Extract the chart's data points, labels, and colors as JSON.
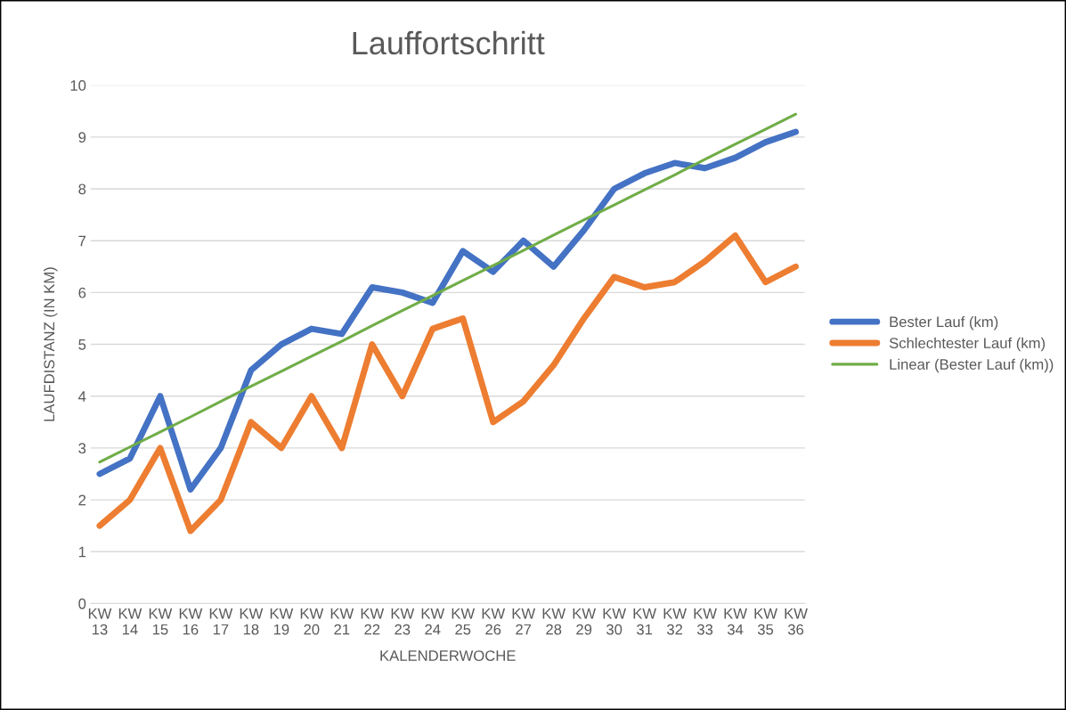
{
  "chart_data": {
    "type": "line",
    "title": "Lauffortschritt",
    "xlabel": "KALENDERWOCHE",
    "ylabel": "LAUFDISTANZ (IN KM)",
    "categories": [
      "KW\n13",
      "KW\n14",
      "KW\n15",
      "KW\n16",
      "KW\n17",
      "KW\n18",
      "KW\n19",
      "KW\n20",
      "KW\n21",
      "KW\n22",
      "KW\n23",
      "KW\n24",
      "KW\n25",
      "KW\n26",
      "KW\n27",
      "KW\n28",
      "KW\n29",
      "KW\n30",
      "KW\n31",
      "KW\n32",
      "KW\n33",
      "KW\n34",
      "KW\n35",
      "KW\n36"
    ],
    "series": [
      {
        "name": "Bester Lauf (km)",
        "color": "#4472c4",
        "values": [
          2.5,
          2.8,
          4.0,
          2.2,
          3.0,
          4.5,
          5.0,
          5.3,
          5.2,
          6.1,
          6.0,
          5.8,
          6.8,
          6.4,
          7.0,
          6.5,
          7.2,
          8.0,
          8.3,
          8.5,
          8.4,
          8.6,
          8.9,
          9.1
        ]
      },
      {
        "name": "Schlechtester Lauf (km)",
        "color": "#ed7d31",
        "values": [
          1.5,
          2.0,
          3.0,
          1.4,
          2.0,
          3.5,
          3.0,
          4.0,
          3.0,
          5.0,
          4.0,
          5.3,
          5.5,
          3.5,
          3.9,
          4.6,
          5.5,
          6.3,
          6.1,
          6.2,
          6.6,
          7.1,
          6.2,
          6.5
        ]
      },
      {
        "name": "Linear (Bester Lauf (km))",
        "color": "#70ad47",
        "type": "line",
        "values": [
          2.73,
          3.02,
          3.31,
          3.6,
          3.9,
          4.19,
          4.48,
          4.77,
          5.06,
          5.36,
          5.65,
          5.94,
          6.23,
          6.52,
          6.81,
          7.11,
          7.4,
          7.69,
          7.98,
          8.27,
          8.57,
          8.86,
          9.15,
          9.44
        ]
      }
    ],
    "ylim": [
      0,
      10
    ],
    "yticks": [
      0,
      1,
      2,
      3,
      4,
      5,
      6,
      7,
      8,
      9,
      10
    ],
    "grid": "y",
    "legend": "right",
    "marker": "none",
    "line_style": "solid"
  }
}
